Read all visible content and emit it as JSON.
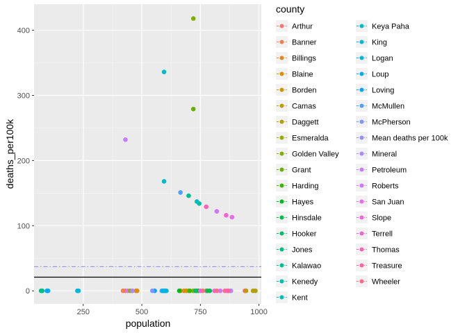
{
  "chart_data": {
    "type": "scatter",
    "xlabel": "population",
    "ylabel": "deaths_per100k",
    "xlim": [
      40,
      1010
    ],
    "ylim": [
      -20,
      440
    ],
    "x_ticks": [
      250,
      500,
      750,
      1000
    ],
    "x_tick_labels": [
      "250",
      "500",
      "750",
      "1000"
    ],
    "y_ticks": [
      0,
      100,
      200,
      300,
      400
    ],
    "y_tick_labels": [
      "0",
      "100",
      "200",
      "300",
      "400"
    ],
    "grid": true,
    "legend_title": "county",
    "legend_position": "right",
    "reference_lines": [
      {
        "y": 21,
        "style": "solid",
        "color": "#000000"
      },
      {
        "y": 37,
        "style": "dashed",
        "color": "#9590FF",
        "legend_entry": "Mean deaths per 100k"
      }
    ],
    "series": [
      {
        "name": "Arthur",
        "color": "#F8766D",
        "x": [
          460
        ],
        "y": [
          0
        ]
      },
      {
        "name": "Banner",
        "color": "#F17D50",
        "x": [
          420
        ],
        "y": [
          0
        ]
      },
      {
        "name": "Billings",
        "color": "#E7851E",
        "x": [
          475
        ],
        "y": [
          0
        ]
      },
      {
        "name": "Blaine",
        "color": "#DB8E00",
        "x": [
          480
        ],
        "y": [
          0
        ]
      },
      {
        "name": "Borden",
        "color": "#CE9500",
        "x": [
          665
        ],
        "y": [
          0
        ]
      },
      {
        "name": "Camas",
        "color": "#BE9C00",
        "x": [
          945
        ],
        "y": [
          0
        ]
      },
      {
        "name": "Daggett",
        "color": "#ADA200",
        "x": [
          985
        ],
        "y": [
          0
        ]
      },
      {
        "name": "Esmeralda",
        "color": "#9AA800",
        "x": [
          700
        ],
        "y": [
          0
        ]
      },
      {
        "name": "Golden Valley",
        "color": "#83AD00",
        "x": [
          720
        ],
        "y": [
          418
        ]
      },
      {
        "name": "Grant",
        "color": "#66B200",
        "x": [
          720
        ],
        "y": [
          279
        ]
      },
      {
        "name": "Harding",
        "color": "#3DB600",
        "x": [
          705
        ],
        "y": [
          0
        ]
      },
      {
        "name": "Hayes",
        "color": "#00B81F",
        "x": [
          660
        ],
        "y": [
          0
        ]
      },
      {
        "name": "Hinsdale",
        "color": "#00BB4E",
        "x": [
          790
        ],
        "y": [
          0
        ]
      },
      {
        "name": "Hooker",
        "color": "#00BC6B",
        "x": [
          730
        ],
        "y": [
          0
        ]
      },
      {
        "name": "Jones",
        "color": "#00BE82",
        "x": [
          75
        ],
        "y": [
          0
        ]
      },
      {
        "name": "Kalawao",
        "color": "#00BF96",
        "x": [
          700
        ],
        "y": [
          146
        ]
      },
      {
        "name": "Kenedy",
        "color": "#00BFA8",
        "x": [
          745
        ],
        "y": [
          134
        ]
      },
      {
        "name": "Kent",
        "color": "#00BEB9",
        "x": [
          735
        ],
        "y": [
          137
        ]
      },
      {
        "name": "Keya Paha",
        "color": "#00BCC8",
        "x": [
          595
        ],
        "y": [
          336
        ]
      },
      {
        "name": "King",
        "color": "#00B9D7",
        "x": [
          225
        ],
        "y": [
          0
        ]
      },
      {
        "name": "Logan",
        "color": "#00B4E4",
        "x": [
          590
        ],
        "y": [
          0
        ]
      },
      {
        "name": "Loup",
        "color": "#00AEF0",
        "x": [
          100
        ],
        "y": [
          0
        ]
      },
      {
        "name": "Loving",
        "color": "#00A6FA",
        "x": [
          95
        ],
        "y": [
          0
        ]
      },
      {
        "name": "McMullen",
        "color": "#529EFF",
        "x": [
          665
        ],
        "y": [
          151
        ]
      },
      {
        "name": "McPherson",
        "color": "#7E96FF",
        "x": [
          545
        ],
        "y": [
          0
        ]
      },
      {
        "name": "Mean deaths per 100k",
        "color": "#9590FF",
        "x": [],
        "y": []
      },
      {
        "name": "Mineral",
        "color": "#AA8AFF",
        "x": [
          460
        ],
        "y": [
          0
        ]
      },
      {
        "name": "Petroleum",
        "color": "#C77CFF",
        "x": [
          430
        ],
        "y": [
          232
        ]
      },
      {
        "name": "Roberts",
        "color": "#D175FB",
        "x": [
          820
        ],
        "y": [
          122
        ]
      },
      {
        "name": "San Juan",
        "color": "#E96AEA",
        "x": [
          885
        ],
        "y": [
          113
        ]
      },
      {
        "name": "Slope",
        "color": "#F265DA",
        "x": [
          750
        ],
        "y": [
          0
        ]
      },
      {
        "name": "Terrell",
        "color": "#F863C9",
        "x": [
          860
        ],
        "y": [
          116
        ]
      },
      {
        "name": "Thomas",
        "color": "#FC62B6",
        "x": [
          775
        ],
        "y": [
          129
        ]
      },
      {
        "name": "Treasure",
        "color": "#FF64A0",
        "x": [
          870
        ],
        "y": [
          0
        ]
      },
      {
        "name": "Wheeler",
        "color": "#FF6C87",
        "x": [
          820
        ],
        "y": [
          0
        ]
      }
    ],
    "extra_points": [
      {
        "color": "#F8766D",
        "x": 430,
        "y": 0
      },
      {
        "color": "#E96AEA",
        "x": 880,
        "y": 0
      },
      {
        "color": "#FC62B6",
        "x": 775,
        "y": 0
      },
      {
        "color": "#00BCC8",
        "x": 595,
        "y": 168
      },
      {
        "color": "#00B9D7",
        "x": 230,
        "y": 0
      },
      {
        "color": "#00BEB9",
        "x": 600,
        "y": 0
      },
      {
        "color": "#00BFA8",
        "x": 605,
        "y": 0
      },
      {
        "color": "#00BE82",
        "x": 70,
        "y": 0
      },
      {
        "color": "#C77CFF",
        "x": 440,
        "y": 0
      },
      {
        "color": "#F265DA",
        "x": 810,
        "y": 0
      },
      {
        "color": "#FF64A0",
        "x": 940,
        "y": 0
      },
      {
        "color": "#FF6C87",
        "x": 855,
        "y": 0
      },
      {
        "color": "#E7851E",
        "x": 680,
        "y": 0
      },
      {
        "color": "#529EFF",
        "x": 585,
        "y": 0
      },
      {
        "color": "#00A6FA",
        "x": 555,
        "y": 0
      },
      {
        "color": "#83AD00",
        "x": 720,
        "y": 0
      },
      {
        "color": "#66B200",
        "x": 730,
        "y": 0
      },
      {
        "color": "#BE9C00",
        "x": 975,
        "y": 0
      },
      {
        "color": "#00B4E4",
        "x": 600,
        "y": 0
      },
      {
        "color": "#D175FB",
        "x": 835,
        "y": 0
      },
      {
        "color": "#00BB4E",
        "x": 780,
        "y": 0
      },
      {
        "color": "#DB8E00",
        "x": 690,
        "y": 0
      },
      {
        "color": "#9AA800",
        "x": 450,
        "y": 0
      },
      {
        "color": "#00BF96",
        "x": 595,
        "y": 0
      },
      {
        "color": "#7E96FF",
        "x": 590,
        "y": 0
      },
      {
        "color": "#00AEF0",
        "x": 600,
        "y": 0
      },
      {
        "color": "#FC62B6",
        "x": 865,
        "y": 0
      },
      {
        "color": "#F17D50",
        "x": 760,
        "y": 0
      },
      {
        "color": "#00B81F",
        "x": 740,
        "y": 0
      },
      {
        "color": "#AA8AFF",
        "x": 880,
        "y": 0
      }
    ]
  }
}
